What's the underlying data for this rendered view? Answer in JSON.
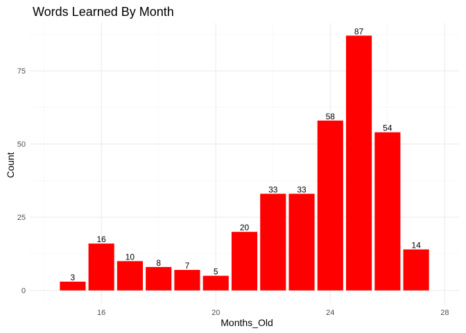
{
  "chart_data": {
    "type": "bar",
    "title": "Words Learned By Month",
    "xlabel": "Months_Old",
    "ylabel": "Count",
    "x": [
      15,
      16,
      17,
      18,
      19,
      20,
      21,
      22,
      23,
      24,
      25,
      26,
      27
    ],
    "values": [
      3,
      16,
      10,
      8,
      7,
      5,
      20,
      33,
      33,
      58,
      87,
      54,
      14
    ],
    "data_labels": [
      "3",
      "16",
      "10",
      "8",
      "7",
      "5",
      "20",
      "33",
      "33",
      "58",
      "87",
      "54",
      "14"
    ],
    "xlim": [
      13.5,
      28.5
    ],
    "ylim": [
      -4.35,
      91.35
    ],
    "xticks": [
      16,
      20,
      24,
      28
    ],
    "xtick_labels": [
      "16",
      "20",
      "24",
      "28"
    ],
    "yticks": [
      0,
      25,
      50,
      75
    ],
    "ytick_labels": [
      "0",
      "25",
      "50",
      "75"
    ],
    "bar_color": "#ff0000",
    "grid": true,
    "legend": "none"
  }
}
